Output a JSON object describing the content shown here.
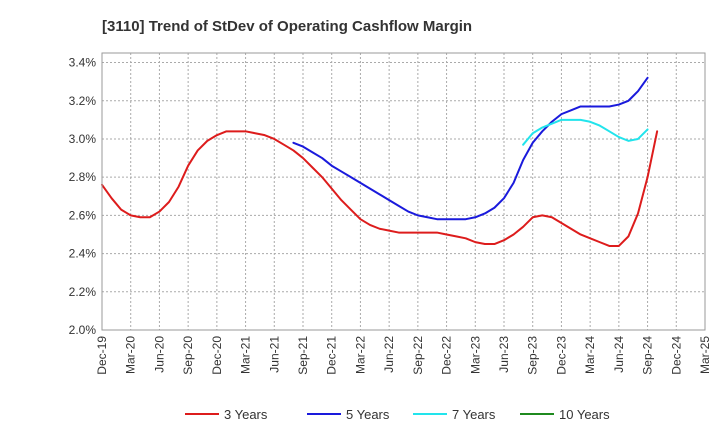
{
  "chart_data": {
    "type": "line",
    "title": "[3110]  Trend of StDev of Operating Cashflow Margin",
    "xlabel": "",
    "ylabel": "",
    "ylim": [
      2.0,
      3.45
    ],
    "yticks": [
      2.0,
      2.2,
      2.4,
      2.6,
      2.8,
      3.0,
      3.2,
      3.4
    ],
    "ytick_labels": [
      "2.0%",
      "2.2%",
      "2.4%",
      "2.6%",
      "2.8%",
      "3.0%",
      "3.2%",
      "3.4%"
    ],
    "x_months": [
      "Dec-19",
      "Jan-20",
      "Feb-20",
      "Mar-20",
      "Apr-20",
      "May-20",
      "Jun-20",
      "Jul-20",
      "Aug-20",
      "Sep-20",
      "Oct-20",
      "Nov-20",
      "Dec-20",
      "Jan-21",
      "Feb-21",
      "Mar-21",
      "Apr-21",
      "May-21",
      "Jun-21",
      "Jul-21",
      "Aug-21",
      "Sep-21",
      "Oct-21",
      "Nov-21",
      "Dec-21",
      "Jan-22",
      "Feb-22",
      "Mar-22",
      "Apr-22",
      "May-22",
      "Jun-22",
      "Jul-22",
      "Aug-22",
      "Sep-22",
      "Oct-22",
      "Nov-22",
      "Dec-22",
      "Jan-23",
      "Feb-23",
      "Mar-23",
      "Apr-23",
      "May-23",
      "Jun-23",
      "Jul-23",
      "Aug-23",
      "Sep-23",
      "Oct-23",
      "Nov-23",
      "Dec-23",
      "Jan-24",
      "Feb-24",
      "Mar-24",
      "Apr-24",
      "May-24",
      "Jun-24",
      "Jul-24",
      "Aug-24",
      "Sep-24",
      "Oct-24",
      "Nov-24",
      "Dec-24",
      "Jan-25",
      "Feb-25",
      "Mar-25"
    ],
    "xtick_labels": [
      "Dec-19",
      "Mar-20",
      "Jun-20",
      "Sep-20",
      "Dec-20",
      "Mar-21",
      "Jun-21",
      "Sep-21",
      "Dec-21",
      "Mar-22",
      "Jun-22",
      "Sep-22",
      "Dec-22",
      "Mar-23",
      "Jun-23",
      "Sep-23",
      "Dec-23",
      "Mar-24",
      "Jun-24",
      "Sep-24",
      "Dec-24",
      "Mar-25"
    ],
    "grid": true,
    "legend_position": "bottom",
    "series": [
      {
        "name": "3 Years",
        "color": "#dd1c1c",
        "start": "Dec-19",
        "values": [
          2.76,
          2.69,
          2.63,
          2.6,
          2.59,
          2.59,
          2.62,
          2.67,
          2.75,
          2.86,
          2.94,
          2.99,
          3.02,
          3.04,
          3.04,
          3.04,
          3.03,
          3.02,
          3.0,
          2.97,
          2.94,
          2.9,
          2.85,
          2.8,
          2.74,
          2.68,
          2.63,
          2.58,
          2.55,
          2.53,
          2.52,
          2.51,
          2.51,
          2.51,
          2.51,
          2.51,
          2.5,
          2.49,
          2.48,
          2.46,
          2.45,
          2.45,
          2.47,
          2.5,
          2.54,
          2.59,
          2.6,
          2.59,
          2.56,
          2.53,
          2.5,
          2.48,
          2.46,
          2.44,
          2.44,
          2.49,
          2.61,
          2.8,
          3.04
        ]
      },
      {
        "name": "5 Years",
        "color": "#1a1adc",
        "start": "Aug-21",
        "values": [
          2.98,
          2.96,
          2.93,
          2.9,
          2.86,
          2.83,
          2.8,
          2.77,
          2.74,
          2.71,
          2.68,
          2.65,
          2.62,
          2.6,
          2.59,
          2.58,
          2.58,
          2.58,
          2.58,
          2.59,
          2.61,
          2.64,
          2.69,
          2.77,
          2.89,
          2.98,
          3.04,
          3.09,
          3.13,
          3.15,
          3.17,
          3.17,
          3.17,
          3.17,
          3.18,
          3.2,
          3.25,
          3.32
        ]
      },
      {
        "name": "7 Years",
        "color": "#22e4ec",
        "start": "Aug-23",
        "values": [
          2.97,
          3.03,
          3.06,
          3.08,
          3.1,
          3.1,
          3.1,
          3.09,
          3.07,
          3.04,
          3.01,
          2.99,
          3.0,
          3.05
        ]
      },
      {
        "name": "10 Years",
        "color": "#1f8a1f",
        "start": "Sep-24",
        "values": []
      }
    ]
  }
}
